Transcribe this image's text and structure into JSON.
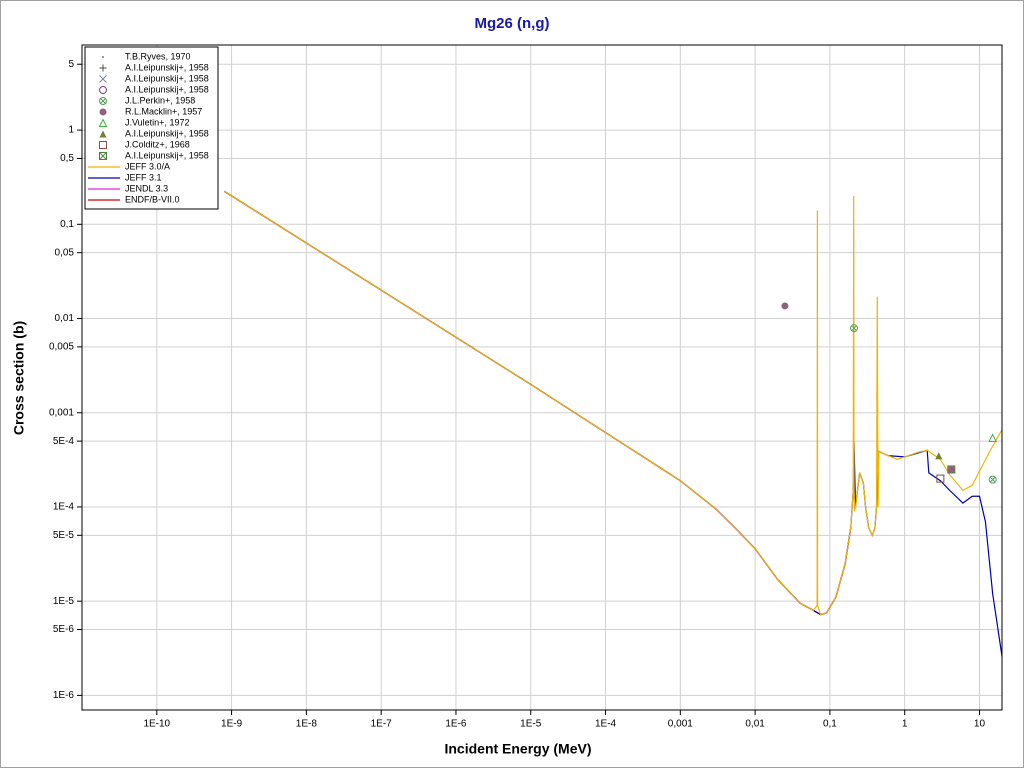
{
  "chart_data": {
    "type": "line",
    "title": "Mg26 (n,g)",
    "xlabel": "Incident Energy (MeV)",
    "ylabel": "Cross section (b)",
    "xscale": "log",
    "yscale": "log",
    "xlim": [
      1e-11,
      20
    ],
    "ylim": [
      7e-07,
      8
    ],
    "grid": true,
    "legend": "upper left",
    "xticks": [
      {
        "value": 1e-10,
        "label": "1E-10"
      },
      {
        "value": 1e-09,
        "label": "1E-9"
      },
      {
        "value": 1e-08,
        "label": "1E-8"
      },
      {
        "value": 1e-07,
        "label": "1E-7"
      },
      {
        "value": 1e-06,
        "label": "1E-6"
      },
      {
        "value": 1e-05,
        "label": "1E-5"
      },
      {
        "value": 0.0001,
        "label": "1E-4"
      },
      {
        "value": 0.001,
        "label": "0,001"
      },
      {
        "value": 0.01,
        "label": "0,01"
      },
      {
        "value": 0.1,
        "label": "0,1"
      },
      1,
      10
    ],
    "yticks": [
      5,
      1,
      {
        "value": 0.5,
        "label": "0,5"
      },
      {
        "value": 0.1,
        "label": "0,1"
      },
      {
        "value": 0.05,
        "label": "0,05"
      },
      {
        "value": 0.01,
        "label": "0,01"
      },
      {
        "value": 0.005,
        "label": "0,005"
      },
      {
        "value": 0.001,
        "label": "0,001"
      },
      {
        "value": 0.0005,
        "label": "5E-4"
      },
      {
        "value": 0.0001,
        "label": "1E-4"
      },
      {
        "value": 5e-05,
        "label": "5E-5"
      },
      {
        "value": 1e-05,
        "label": "1E-5"
      },
      {
        "value": 5e-06,
        "label": "5E-6"
      },
      {
        "value": 1e-06,
        "label": "1E-6"
      }
    ],
    "series": [
      {
        "name": "T.B.Ryves, 1970",
        "color": "#808080",
        "marker": "dot"
      },
      {
        "name": "A.I.Leipunskij+, 1958",
        "color": "#405040",
        "marker": "plus"
      },
      {
        "name": "A.I.Leipunskij+, 1958",
        "color": "#8080a0",
        "marker": "x"
      },
      {
        "name": "A.I.Leipunskij+, 1958",
        "color": "#804080",
        "marker": "circle"
      },
      {
        "name": "J.L.Perkin+, 1958",
        "color": "#50a050",
        "marker": "circle-x",
        "x": [
          0.21,
          15
        ],
        "values": [
          0.0079,
          0.000195
        ]
      },
      {
        "name": "R.L.Macklin+, 1957",
        "color": "#906080",
        "marker": "filled-circle",
        "x": [
          0.025,
          4.2
        ],
        "values": [
          0.0136,
          0.00025
        ]
      },
      {
        "name": "J.Vuletin+, 1972",
        "color": "#40b040",
        "marker": "triangle",
        "x": [
          15
        ],
        "values": [
          0.00054
        ]
      },
      {
        "name": "A.I.Leipunskij+, 1958",
        "color": "#708030",
        "marker": "filled-triangle",
        "x": [
          2.85
        ],
        "values": [
          0.00035
        ]
      },
      {
        "name": "J.Colditz+, 1968",
        "color": "#805040",
        "marker": "square",
        "x": [
          3.0
        ],
        "values": [
          0.0002
        ]
      },
      {
        "name": "A.I.Leipunskij+, 1958",
        "color": "#508040",
        "marker": "square-x",
        "x": [
          4.2
        ],
        "values": [
          0.00025
        ]
      },
      {
        "name": "JEFF 3.0/A",
        "color": "#f0b400",
        "x": [
          8e-10,
          1e-07,
          1e-05,
          0.001,
          0.003,
          0.006,
          0.01,
          0.02,
          0.04,
          0.06,
          0.0675,
          0.068,
          0.0685,
          0.075,
          0.09,
          0.12,
          0.16,
          0.19,
          0.205,
          0.208,
          0.21,
          0.212,
          0.22,
          0.25,
          0.28,
          0.3,
          0.33,
          0.37,
          0.4,
          0.42,
          0.43,
          0.44,
          0.45,
          0.6,
          0.8,
          1,
          1.5,
          2,
          3,
          4,
          6,
          8,
          10,
          14,
          20
        ],
        "values": [
          0.224,
          0.02,
          0.002,
          0.00019,
          9.5e-05,
          5.5e-05,
          3.6e-05,
          1.7e-05,
          9.5e-06,
          8e-06,
          9e-06,
          0.14,
          9e-06,
          7.2e-06,
          7.5e-06,
          1.1e-05,
          2.5e-05,
          6e-05,
          0.00015,
          0.2,
          0.0002,
          9e-05,
          0.0001,
          0.00023,
          0.00018,
          0.0001,
          6e-05,
          5e-05,
          6e-05,
          0.0001,
          0.017,
          0.0001,
          0.00039,
          0.00035,
          0.00032,
          0.00034,
          0.00038,
          0.0004,
          0.00032,
          0.00022,
          0.00015,
          0.00017,
          0.00024,
          0.0004,
          0.00066
        ]
      },
      {
        "name": "JEFF 3.1",
        "color": "#0000b0",
        "x": [
          8e-10,
          1e-07,
          1e-05,
          0.001,
          0.003,
          0.006,
          0.01,
          0.02,
          0.04,
          0.06,
          0.075,
          0.09,
          0.12,
          0.16,
          0.19,
          0.205,
          0.21,
          0.22,
          0.25,
          0.28,
          0.3,
          0.33,
          0.37,
          0.4,
          0.42,
          0.45,
          0.6,
          1,
          2,
          2.1,
          3,
          4,
          6,
          8,
          10,
          12,
          15,
          20
        ],
        "values": [
          0.224,
          0.02,
          0.002,
          0.00019,
          9.5e-05,
          5.5e-05,
          3.6e-05,
          1.7e-05,
          9.5e-06,
          8e-06,
          7.2e-06,
          7.5e-06,
          1.1e-05,
          2.5e-05,
          6e-05,
          0.00015,
          0.0005,
          0.0001,
          0.00023,
          0.00018,
          0.0001,
          6e-05,
          5e-05,
          6e-05,
          0.0001,
          0.00039,
          0.00035,
          0.00034,
          0.0004,
          0.00023,
          0.00019,
          0.00015,
          0.00011,
          0.00013,
          0.00013,
          7e-05,
          1.2e-05,
          2.6e-06
        ]
      },
      {
        "name": "JENDL 3.3",
        "color": "#e020e0",
        "x": [
          8e-10,
          1e-07,
          1e-05,
          0.001,
          0.003,
          0.006,
          0.01,
          0.02,
          0.04,
          0.06,
          0.075,
          0.09,
          0.12,
          0.16,
          0.19
        ],
        "values": [
          0.224,
          0.02,
          0.002,
          0.00019,
          9.5e-05,
          5.5e-05,
          3.6e-05,
          1.7e-05,
          9.5e-06,
          8e-06,
          7.2e-06,
          7.5e-06,
          1.1e-05,
          2.5e-05,
          6e-05
        ]
      },
      {
        "name": "ENDF/B-VII.0",
        "color": "#d00000",
        "x": [
          8e-10,
          1e-07,
          1e-05,
          0.001,
          0.003,
          0.006,
          0.01,
          0.02,
          0.04,
          0.06,
          0.075,
          0.09,
          0.12,
          0.16,
          0.19
        ],
        "values": [
          0.224,
          0.02,
          0.002,
          0.00019,
          9.5e-05,
          5.5e-05,
          3.6e-05,
          1.7e-05,
          9.5e-06,
          8e-06,
          7.2e-06,
          7.5e-06,
          1.1e-05,
          2.5e-05,
          6e-05
        ]
      }
    ]
  }
}
